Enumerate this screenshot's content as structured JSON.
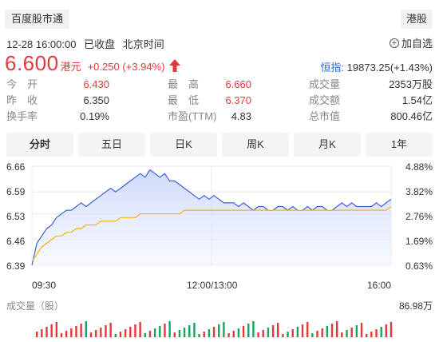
{
  "header": {
    "source_tag": "百度股市通",
    "market_tag": "港股",
    "datetime": "12-28 16:00:00",
    "status": "已收盘",
    "timezone": "北京时间",
    "add_watch": "加自选"
  },
  "quote": {
    "price": "6.600",
    "currency": "港元",
    "change": "+0.250 (+3.94%)",
    "index_name": "恒指:",
    "index_value": " 19873.25(+1.43%)",
    "up_color": "#e4393c"
  },
  "stats": [
    [
      {
        "label": "今　开",
        "value": "6.430",
        "red": true
      },
      {
        "label": "最　高",
        "value": "6.660",
        "red": true
      },
      {
        "label": "成交量",
        "value": "2353万股",
        "red": false
      }
    ],
    [
      {
        "label": "昨　收",
        "value": "6.350",
        "red": false
      },
      {
        "label": "最　低",
        "value": "6.370",
        "red": true
      },
      {
        "label": "成交额",
        "value": "1.54亿",
        "red": false
      }
    ],
    [
      {
        "label": "换手率",
        "value": "0.19%",
        "red": false
      },
      {
        "label": "市盈(TTM)",
        "value": "4.83",
        "red": false
      },
      {
        "label": "总市值",
        "value": "800.46亿",
        "red": false
      }
    ]
  ],
  "tabs": [
    "分时",
    "五日",
    "日K",
    "周K",
    "月K",
    "1年"
  ],
  "active_tab": "分时",
  "chart": {
    "y_left": [
      "6.66",
      "6.59",
      "6.53",
      "6.46",
      "6.39"
    ],
    "y_right": [
      "4.88%",
      "3.82%",
      "2.76%",
      "1.69%",
      "0.63%"
    ],
    "x_labels": [
      "09:30",
      "12:00/13:00",
      "16:00"
    ],
    "volume_title": "成交量（股）",
    "volume_max": "86.98万"
  },
  "chart_data": {
    "type": "line",
    "title": "",
    "xlabel": "",
    "ylabel": "",
    "x_ticks": [
      "09:30",
      "12:00/13:00",
      "16:00"
    ],
    "ylim": [
      6.39,
      6.66
    ],
    "y_ticks": [
      6.66,
      6.59,
      6.53,
      6.46,
      6.39
    ],
    "y2_ticks": [
      "4.88%",
      "3.82%",
      "2.76%",
      "1.69%",
      "0.63%"
    ],
    "grid": true,
    "series": [
      {
        "color": "#3b5fd9",
        "values": [
          6.39,
          6.45,
          6.47,
          6.49,
          6.5,
          6.52,
          6.53,
          6.54,
          6.54,
          6.55,
          6.56,
          6.55,
          6.56,
          6.57,
          6.58,
          6.59,
          6.6,
          6.59,
          6.6,
          6.61,
          6.62,
          6.63,
          6.64,
          6.63,
          6.65,
          6.64,
          6.63,
          6.64,
          6.62,
          6.62,
          6.61,
          6.6,
          6.59,
          6.58,
          6.57,
          6.58,
          6.57,
          6.58,
          6.57,
          6.56,
          6.56,
          6.56,
          6.55,
          6.56,
          6.55,
          6.54,
          6.55,
          6.55,
          6.54,
          6.54,
          6.55,
          6.55,
          6.54,
          6.55,
          6.54,
          6.54,
          6.55,
          6.54,
          6.55,
          6.55,
          6.54,
          6.54,
          6.55,
          6.56,
          6.55,
          6.56,
          6.55,
          6.55,
          6.55,
          6.55,
          6.56,
          6.55,
          6.56,
          6.57
        ]
      },
      {
        "color": "#f5b315",
        "values": [
          6.4,
          6.42,
          6.44,
          6.45,
          6.46,
          6.47,
          6.47,
          6.48,
          6.48,
          6.49,
          6.49,
          6.5,
          6.5,
          6.5,
          6.51,
          6.51,
          6.51,
          6.51,
          6.52,
          6.52,
          6.52,
          6.52,
          6.53,
          6.53,
          6.53,
          6.53,
          6.53,
          6.53,
          6.53,
          6.53,
          6.53,
          6.54,
          6.54,
          6.54,
          6.54,
          6.54,
          6.54,
          6.54,
          6.54,
          6.54,
          6.54,
          6.54,
          6.54,
          6.54,
          6.54,
          6.54,
          6.54,
          6.54,
          6.54,
          6.54,
          6.54,
          6.54,
          6.54,
          6.54,
          6.54,
          6.54,
          6.54,
          6.54,
          6.54,
          6.54,
          6.54,
          6.54,
          6.54,
          6.54,
          6.54,
          6.54,
          6.54,
          6.54,
          6.54,
          6.54,
          6.54,
          6.54,
          6.54,
          6.55
        ]
      }
    ],
    "volume_colors": {
      "up": "#e4393c",
      "down": "#1aa260"
    }
  }
}
